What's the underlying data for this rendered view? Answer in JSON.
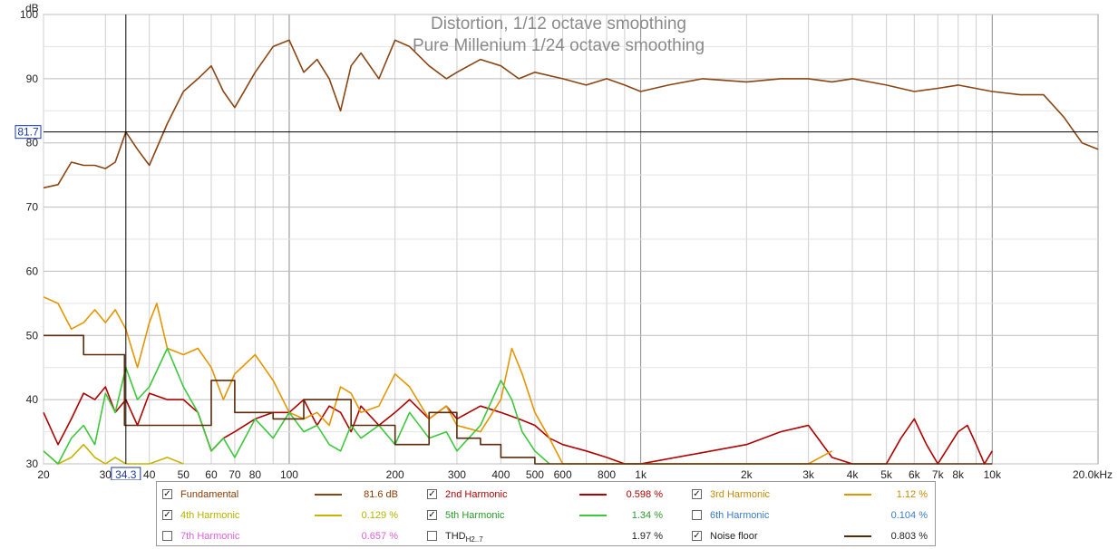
{
  "chart_data": {
    "type": "line",
    "title": "Distortion, 1/12 octave smoothing",
    "subtitle": "Pure Millenium 1/24 octave smoothing",
    "ylabel": "dB",
    "xscale": "log",
    "xlim": [
      20,
      20000
    ],
    "ylim": [
      30,
      100
    ],
    "y_ticks": [
      "100",
      "90",
      "80",
      "70",
      "60",
      "50",
      "40",
      "30"
    ],
    "y_tick_values": [
      100,
      90,
      80,
      70,
      60,
      50,
      40,
      30
    ],
    "x_tick_labels": [
      {
        "value": 20,
        "label": "20"
      },
      {
        "value": 30,
        "label": "30"
      },
      {
        "value": 40,
        "label": "40"
      },
      {
        "value": 50,
        "label": "50"
      },
      {
        "value": 60,
        "label": "60"
      },
      {
        "value": 70,
        "label": "70"
      },
      {
        "value": 80,
        "label": "80"
      },
      {
        "value": 100,
        "label": "100"
      },
      {
        "value": 200,
        "label": "200"
      },
      {
        "value": 300,
        "label": "300"
      },
      {
        "value": 400,
        "label": "400"
      },
      {
        "value": 500,
        "label": "500"
      },
      {
        "value": 600,
        "label": "600"
      },
      {
        "value": 800,
        "label": "800"
      },
      {
        "value": 1000,
        "label": "1k"
      },
      {
        "value": 2000,
        "label": "2k"
      },
      {
        "value": 3000,
        "label": "3k"
      },
      {
        "value": 4000,
        "label": "4k"
      },
      {
        "value": 5000,
        "label": "5k"
      },
      {
        "value": 6000,
        "label": "6k"
      },
      {
        "value": 7000,
        "label": "7k"
      },
      {
        "value": 8000,
        "label": "8k"
      },
      {
        "value": 10000,
        "label": "10k"
      },
      {
        "value": 20000,
        "label": "20.0kHz"
      }
    ],
    "grid": true,
    "cursor": {
      "x": 34.3,
      "y": 81.7,
      "x_label": "34.3",
      "y_label": "81.7"
    },
    "series": [
      {
        "name": "Fundamental",
        "color": "#8b4513",
        "points": [
          [
            20,
            73
          ],
          [
            22,
            73.5
          ],
          [
            24,
            77
          ],
          [
            26,
            76.5
          ],
          [
            28,
            76.5
          ],
          [
            30,
            76
          ],
          [
            32,
            77
          ],
          [
            34.3,
            81.7
          ],
          [
            37,
            79
          ],
          [
            40,
            76.5
          ],
          [
            45,
            83
          ],
          [
            50,
            88
          ],
          [
            55,
            90
          ],
          [
            60,
            92
          ],
          [
            65,
            88
          ],
          [
            70,
            85.5
          ],
          [
            80,
            91
          ],
          [
            90,
            95
          ],
          [
            100,
            96
          ],
          [
            110,
            91
          ],
          [
            120,
            93
          ],
          [
            130,
            90
          ],
          [
            140,
            85
          ],
          [
            150,
            92
          ],
          [
            160,
            94
          ],
          [
            180,
            90
          ],
          [
            200,
            96
          ],
          [
            220,
            95
          ],
          [
            250,
            92
          ],
          [
            280,
            90
          ],
          [
            300,
            91
          ],
          [
            350,
            93
          ],
          [
            400,
            92
          ],
          [
            450,
            90
          ],
          [
            500,
            91
          ],
          [
            600,
            90
          ],
          [
            700,
            89
          ],
          [
            800,
            90
          ],
          [
            900,
            89
          ],
          [
            1000,
            88
          ],
          [
            1200,
            89
          ],
          [
            1500,
            90
          ],
          [
            2000,
            89.5
          ],
          [
            2500,
            90
          ],
          [
            3000,
            90
          ],
          [
            3500,
            89.5
          ],
          [
            4000,
            90
          ],
          [
            5000,
            89
          ],
          [
            6000,
            88
          ],
          [
            7000,
            88.5
          ],
          [
            8000,
            89
          ],
          [
            10000,
            88
          ],
          [
            12000,
            87.5
          ],
          [
            14000,
            87.5
          ],
          [
            16000,
            84
          ],
          [
            18000,
            80
          ],
          [
            20000,
            79
          ]
        ]
      },
      {
        "name": "2nd Harmonic",
        "color": "#b00000",
        "points": [
          [
            20,
            38
          ],
          [
            22,
            33
          ],
          [
            24,
            37
          ],
          [
            26,
            41
          ],
          [
            28,
            40
          ],
          [
            30,
            42
          ],
          [
            32,
            38
          ],
          [
            34.3,
            40
          ],
          [
            37,
            36
          ],
          [
            40,
            41
          ],
          [
            45,
            40
          ],
          [
            50,
            40
          ],
          [
            55,
            38
          ],
          [
            60,
            32
          ],
          [
            65,
            34
          ],
          [
            70,
            35
          ],
          [
            80,
            37
          ],
          [
            90,
            38
          ],
          [
            100,
            38
          ],
          [
            110,
            40
          ],
          [
            120,
            36
          ],
          [
            130,
            39
          ],
          [
            140,
            38
          ],
          [
            150,
            35
          ],
          [
            160,
            39
          ],
          [
            180,
            36
          ],
          [
            200,
            38
          ],
          [
            220,
            40
          ],
          [
            250,
            37
          ],
          [
            280,
            39
          ],
          [
            300,
            37
          ],
          [
            350,
            39
          ],
          [
            400,
            38
          ],
          [
            450,
            37
          ],
          [
            500,
            36
          ],
          [
            550,
            34
          ],
          [
            600,
            33
          ],
          [
            700,
            32
          ],
          [
            800,
            31
          ],
          [
            900,
            30
          ],
          [
            1000,
            30
          ],
          [
            2000,
            33
          ],
          [
            2500,
            35
          ],
          [
            3000,
            36
          ],
          [
            3500,
            31
          ],
          [
            4000,
            30
          ],
          [
            5000,
            30
          ],
          [
            5500,
            34
          ],
          [
            6000,
            37
          ],
          [
            6500,
            33
          ],
          [
            7000,
            30
          ],
          [
            8000,
            35
          ],
          [
            8500,
            36
          ],
          [
            9000,
            33
          ],
          [
            9500,
            30
          ],
          [
            10000,
            32
          ]
        ]
      },
      {
        "name": "3rd Harmonic",
        "color": "#e59500",
        "points": [
          [
            20,
            56
          ],
          [
            22,
            55
          ],
          [
            24,
            51
          ],
          [
            26,
            52
          ],
          [
            28,
            54
          ],
          [
            30,
            52
          ],
          [
            32,
            54
          ],
          [
            34.3,
            51
          ],
          [
            37,
            45
          ],
          [
            40,
            52
          ],
          [
            42,
            55
          ],
          [
            45,
            48
          ],
          [
            50,
            47
          ],
          [
            55,
            48
          ],
          [
            60,
            45
          ],
          [
            65,
            40
          ],
          [
            70,
            44
          ],
          [
            80,
            47
          ],
          [
            90,
            43
          ],
          [
            100,
            38
          ],
          [
            110,
            37
          ],
          [
            120,
            38
          ],
          [
            130,
            36
          ],
          [
            140,
            42
          ],
          [
            150,
            41
          ],
          [
            160,
            38
          ],
          [
            180,
            39
          ],
          [
            200,
            44
          ],
          [
            220,
            42
          ],
          [
            250,
            37
          ],
          [
            280,
            39
          ],
          [
            300,
            36
          ],
          [
            350,
            35
          ],
          [
            400,
            40
          ],
          [
            430,
            48
          ],
          [
            460,
            44
          ],
          [
            500,
            38
          ],
          [
            550,
            34
          ],
          [
            600,
            30
          ],
          [
            1000,
            30
          ],
          [
            3000,
            30
          ],
          [
            3500,
            32
          ]
        ]
      },
      {
        "name": "4th Harmonic",
        "color": "#c8b400",
        "points": [
          [
            20,
            32
          ],
          [
            22,
            30
          ],
          [
            24,
            31
          ],
          [
            26,
            33
          ],
          [
            28,
            31
          ],
          [
            30,
            30
          ],
          [
            32,
            31
          ],
          [
            34.3,
            30
          ],
          [
            40,
            30
          ],
          [
            45,
            31
          ],
          [
            50,
            30
          ]
        ]
      },
      {
        "name": "5th Harmonic",
        "color": "#3cc83c",
        "points": [
          [
            20,
            32
          ],
          [
            22,
            30
          ],
          [
            24,
            34
          ],
          [
            26,
            36
          ],
          [
            28,
            33
          ],
          [
            30,
            41
          ],
          [
            32,
            38
          ],
          [
            34.3,
            45
          ],
          [
            37,
            40
          ],
          [
            40,
            42
          ],
          [
            45,
            48
          ],
          [
            50,
            42
          ],
          [
            55,
            38
          ],
          [
            60,
            32
          ],
          [
            65,
            34
          ],
          [
            70,
            31
          ],
          [
            80,
            37
          ],
          [
            90,
            34
          ],
          [
            100,
            38
          ],
          [
            110,
            35
          ],
          [
            120,
            36
          ],
          [
            130,
            33
          ],
          [
            140,
            32
          ],
          [
            150,
            36
          ],
          [
            160,
            34
          ],
          [
            180,
            36
          ],
          [
            200,
            33
          ],
          [
            220,
            38
          ],
          [
            250,
            34
          ],
          [
            280,
            35
          ],
          [
            300,
            32
          ],
          [
            350,
            36
          ],
          [
            400,
            43
          ],
          [
            430,
            40
          ],
          [
            460,
            35
          ],
          [
            500,
            32
          ],
          [
            550,
            30
          ]
        ]
      },
      {
        "name": "Noise floor",
        "color": "#5a2a0a",
        "points": [
          [
            20,
            50
          ],
          [
            26,
            50
          ],
          [
            26,
            47
          ],
          [
            34,
            47
          ],
          [
            34,
            36
          ],
          [
            60,
            36
          ],
          [
            60,
            43
          ],
          [
            70,
            43
          ],
          [
            70,
            38
          ],
          [
            90,
            38
          ],
          [
            90,
            37
          ],
          [
            110,
            37
          ],
          [
            110,
            40
          ],
          [
            150,
            40
          ],
          [
            150,
            36
          ],
          [
            200,
            36
          ],
          [
            200,
            33
          ],
          [
            250,
            33
          ],
          [
            250,
            38
          ],
          [
            300,
            38
          ],
          [
            300,
            34
          ],
          [
            350,
            34
          ],
          [
            350,
            33
          ],
          [
            400,
            33
          ],
          [
            400,
            31
          ],
          [
            500,
            31
          ],
          [
            500,
            30
          ],
          [
            10000,
            30
          ]
        ]
      }
    ]
  },
  "legend": {
    "items": [
      {
        "label": "Fundamental",
        "value": "81.6 dB",
        "checked": true,
        "color": "#8b4513",
        "text_color": "#8b3a00"
      },
      {
        "label": "2nd Harmonic",
        "value": "0.598 %",
        "checked": true,
        "color": "#b00000",
        "text_color": "#b00000"
      },
      {
        "label": "3rd Harmonic",
        "value": "1.12 %",
        "checked": true,
        "color": "#e59500",
        "text_color": "#c88a00"
      },
      {
        "label": "4th Harmonic",
        "value": "0.129 %",
        "checked": true,
        "color": "#c8b400",
        "text_color": "#b3b300"
      },
      {
        "label": "5th Harmonic",
        "value": "1.34 %",
        "checked": true,
        "color": "#3cc83c",
        "text_color": "#2a9a2a"
      },
      {
        "label": "6th Harmonic",
        "value": "0.104 %",
        "checked": false,
        "color": "",
        "text_color": "#3a7ac8"
      },
      {
        "label": "7th Harmonic",
        "value": "0.657 %",
        "checked": false,
        "color": "",
        "text_color": "#e060e0"
      },
      {
        "label": "THD",
        "label_sub": "H2..7",
        "value": "1.97 %",
        "checked": false,
        "color": "",
        "text_color": "#222222"
      },
      {
        "label": "Noise floor",
        "value": "0.803 %",
        "checked": true,
        "color": "#5a2a0a",
        "text_color": "#222222"
      }
    ]
  }
}
